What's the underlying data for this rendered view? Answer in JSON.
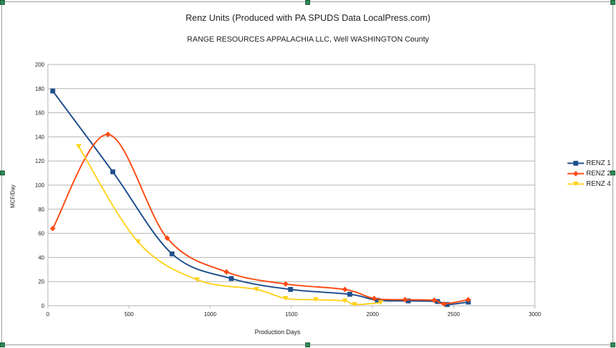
{
  "chart_data": {
    "type": "line",
    "title": "Renz Units (Produced with PA SPUDS Data LocalPress.com)",
    "subtitle": "RANGE RESOURCES APPALACHIA LLC, Well  WASHINGTON County",
    "xlabel": "Production Days",
    "ylabel": "MCF/Day",
    "xlim": [
      0,
      3000
    ],
    "ylim": [
      0,
      200
    ],
    "xticks": [
      0,
      500,
      1000,
      1500,
      2000,
      2500,
      3000
    ],
    "yticks": [
      0,
      20,
      40,
      60,
      80,
      100,
      120,
      140,
      160,
      180,
      200
    ],
    "grid": true,
    "legend_position": "right",
    "series": [
      {
        "name": "RENZ 1",
        "color": "#1f4e8c",
        "marker": "square",
        "points": [
          [
            30,
            178
          ],
          [
            400,
            111
          ],
          [
            765,
            43
          ],
          [
            1130,
            22.5
          ],
          [
            1495,
            13.5
          ],
          [
            1860,
            9.5
          ],
          [
            2030,
            4.5
          ],
          [
            2220,
            4
          ],
          [
            2400,
            3.5
          ],
          [
            2460,
            1
          ],
          [
            2590,
            3
          ]
        ]
      },
      {
        "name": "RENZ 2",
        "color": "#ff4a12",
        "marker": "diamond",
        "points": [
          [
            30,
            64
          ],
          [
            370,
            142
          ],
          [
            735,
            56
          ],
          [
            1100,
            28
          ],
          [
            1465,
            18
          ],
          [
            1830,
            13.5
          ],
          [
            2010,
            6
          ],
          [
            2200,
            5
          ],
          [
            2380,
            4.5
          ],
          [
            2440,
            1.5
          ],
          [
            2590,
            5
          ]
        ]
      },
      {
        "name": "RENZ 4",
        "color": "#ffd320",
        "marker": "triangle-down",
        "points": [
          [
            190,
            132
          ],
          [
            555,
            53
          ],
          [
            920,
            21.5
          ],
          [
            1285,
            13.5
          ],
          [
            1465,
            6
          ],
          [
            1650,
            5
          ],
          [
            1830,
            4
          ],
          [
            1890,
            1
          ],
          [
            2050,
            2.5
          ]
        ]
      }
    ]
  }
}
